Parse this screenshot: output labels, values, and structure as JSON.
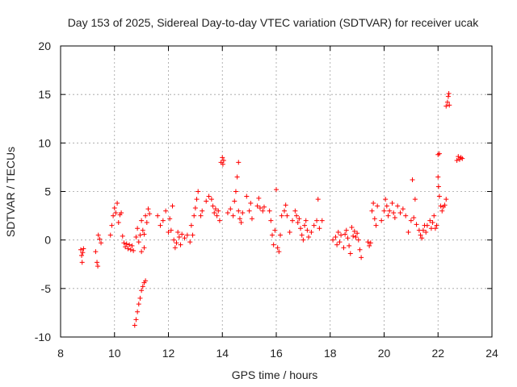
{
  "chart_data": {
    "type": "scatter",
    "title": "Day 153 of 2025, Sidereal Day-to-day VTEC variation (SDTVAR) for receiver ucak",
    "xlabel": "GPS time / hours",
    "ylabel": "SDTVAR / TECUs",
    "xlim": [
      8,
      24
    ],
    "ylim": [
      -10,
      20
    ],
    "xticks": [
      "8",
      "10",
      "12",
      "14",
      "16",
      "18",
      "20",
      "22",
      "24"
    ],
    "yticks": [
      "-10",
      "-5",
      "0",
      "5",
      "10",
      "15",
      "20"
    ],
    "grid": true,
    "marker": "plus",
    "color": "#ff0000",
    "series": [
      {
        "name": "SDTVAR",
        "points": [
          [
            8.75,
            -1.0
          ],
          [
            8.78,
            -1.6
          ],
          [
            8.8,
            -2.3
          ],
          [
            8.82,
            -1.3
          ],
          [
            8.85,
            -0.9
          ],
          [
            9.3,
            -1.2
          ],
          [
            9.35,
            -2.3
          ],
          [
            9.38,
            -2.7
          ],
          [
            9.4,
            0.5
          ],
          [
            9.45,
            0.1
          ],
          [
            9.5,
            -0.3
          ],
          [
            9.85,
            0.5
          ],
          [
            9.9,
            1.5
          ],
          [
            9.95,
            2.5
          ],
          [
            10.0,
            3.3
          ],
          [
            10.05,
            2.8
          ],
          [
            10.1,
            3.8
          ],
          [
            10.15,
            1.8
          ],
          [
            10.2,
            2.6
          ],
          [
            10.25,
            2.8
          ],
          [
            10.3,
            0.4
          ],
          [
            10.35,
            -0.3
          ],
          [
            10.4,
            -0.7
          ],
          [
            10.45,
            -0.4
          ],
          [
            10.5,
            -0.9
          ],
          [
            10.55,
            -0.5
          ],
          [
            10.6,
            -1.0
          ],
          [
            10.65,
            -0.6
          ],
          [
            10.7,
            -1.1
          ],
          [
            10.75,
            -8.8
          ],
          [
            10.8,
            -8.2
          ],
          [
            10.85,
            -7.4
          ],
          [
            10.9,
            -6.6
          ],
          [
            10.95,
            -6.0
          ],
          [
            11.0,
            -5.2
          ],
          [
            11.05,
            -4.8
          ],
          [
            11.1,
            -4.4
          ],
          [
            11.15,
            -4.2
          ],
          [
            10.8,
            0.3
          ],
          [
            10.85,
            1.2
          ],
          [
            10.9,
            -0.2
          ],
          [
            10.95,
            0.5
          ],
          [
            11.0,
            2.0
          ],
          [
            11.05,
            1.0
          ],
          [
            11.1,
            0.6
          ],
          [
            11.15,
            2.5
          ],
          [
            11.2,
            1.8
          ],
          [
            11.25,
            3.2
          ],
          [
            11.3,
            2.7
          ],
          [
            11.0,
            -1.2
          ],
          [
            11.1,
            -0.8
          ],
          [
            11.6,
            2.5
          ],
          [
            11.7,
            1.5
          ],
          [
            11.8,
            2.0
          ],
          [
            11.9,
            3.0
          ],
          [
            12.0,
            0.8
          ],
          [
            12.05,
            2.2
          ],
          [
            12.1,
            1.0
          ],
          [
            12.15,
            3.5
          ],
          [
            12.2,
            0.0
          ],
          [
            12.25,
            -0.8
          ],
          [
            12.3,
            -0.3
          ],
          [
            12.35,
            0.8
          ],
          [
            12.4,
            0.3
          ],
          [
            12.45,
            -0.5
          ],
          [
            12.5,
            0.6
          ],
          [
            12.6,
            0.2
          ],
          [
            12.7,
            0.5
          ],
          [
            12.8,
            -0.2
          ],
          [
            12.85,
            1.5
          ],
          [
            12.9,
            0.5
          ],
          [
            12.95,
            2.5
          ],
          [
            13.0,
            3.3
          ],
          [
            13.05,
            4.2
          ],
          [
            13.1,
            5.0
          ],
          [
            13.2,
            2.5
          ],
          [
            13.25,
            3.0
          ],
          [
            13.4,
            4.0
          ],
          [
            13.5,
            4.5
          ],
          [
            13.6,
            4.2
          ],
          [
            13.65,
            3.5
          ],
          [
            13.7,
            2.8
          ],
          [
            13.75,
            3.2
          ],
          [
            13.8,
            2.5
          ],
          [
            13.85,
            3.0
          ],
          [
            13.9,
            2.0
          ],
          [
            13.95,
            8.0
          ],
          [
            14.0,
            8.5
          ],
          [
            14.02,
            7.8
          ],
          [
            14.05,
            8.2
          ],
          [
            14.2,
            2.8
          ],
          [
            14.3,
            3.2
          ],
          [
            14.4,
            2.5
          ],
          [
            14.45,
            4.0
          ],
          [
            14.5,
            5.0
          ],
          [
            14.55,
            6.5
          ],
          [
            14.6,
            3.0
          ],
          [
            14.65,
            2.2
          ],
          [
            14.7,
            1.8
          ],
          [
            14.75,
            2.8
          ],
          [
            14.6,
            8.0
          ],
          [
            14.9,
            4.5
          ],
          [
            15.0,
            3.0
          ],
          [
            15.05,
            3.8
          ],
          [
            15.1,
            2.2
          ],
          [
            15.3,
            3.5
          ],
          [
            15.35,
            4.3
          ],
          [
            15.4,
            3.3
          ],
          [
            15.5,
            3.0
          ],
          [
            15.55,
            3.4
          ],
          [
            15.75,
            3.0
          ],
          [
            15.8,
            2.0
          ],
          [
            15.85,
            0.5
          ],
          [
            15.9,
            -0.5
          ],
          [
            15.95,
            1.0
          ],
          [
            16.0,
            5.2
          ],
          [
            16.05,
            -0.8
          ],
          [
            16.1,
            -1.2
          ],
          [
            16.15,
            0.5
          ],
          [
            16.2,
            2.5
          ],
          [
            16.3,
            3.0
          ],
          [
            16.35,
            3.6
          ],
          [
            16.4,
            2.5
          ],
          [
            16.5,
            0.8
          ],
          [
            16.6,
            2.0
          ],
          [
            16.7,
            3.0
          ],
          [
            16.75,
            2.5
          ],
          [
            16.8,
            1.8
          ],
          [
            16.85,
            2.2
          ],
          [
            16.9,
            1.2
          ],
          [
            16.95,
            0.5
          ],
          [
            17.0,
            0.0
          ],
          [
            17.05,
            1.5
          ],
          [
            17.1,
            2.0
          ],
          [
            17.15,
            1.0
          ],
          [
            17.2,
            0.3
          ],
          [
            17.3,
            0.8
          ],
          [
            17.4,
            1.5
          ],
          [
            17.5,
            2.0
          ],
          [
            17.55,
            4.2
          ],
          [
            17.6,
            1.2
          ],
          [
            17.7,
            2.0
          ],
          [
            18.1,
            0.0
          ],
          [
            18.2,
            0.3
          ],
          [
            18.25,
            -0.5
          ],
          [
            18.3,
            0.8
          ],
          [
            18.35,
            -0.2
          ],
          [
            18.4,
            0.5
          ],
          [
            18.5,
            -0.8
          ],
          [
            18.55,
            0.6
          ],
          [
            18.6,
            1.0
          ],
          [
            18.65,
            0.2
          ],
          [
            18.7,
            -0.6
          ],
          [
            18.75,
            -1.4
          ],
          [
            18.8,
            1.3
          ],
          [
            18.85,
            0.4
          ],
          [
            18.9,
            0.9
          ],
          [
            18.95,
            0.3
          ],
          [
            19.0,
            0.7
          ],
          [
            19.05,
            0.0
          ],
          [
            19.1,
            -1.0
          ],
          [
            19.15,
            -1.8
          ],
          [
            19.4,
            -0.2
          ],
          [
            19.45,
            -0.6
          ],
          [
            19.5,
            -0.3
          ],
          [
            19.55,
            3.0
          ],
          [
            19.6,
            3.8
          ],
          [
            19.65,
            2.2
          ],
          [
            19.7,
            1.5
          ],
          [
            19.75,
            3.5
          ],
          [
            19.9,
            2.0
          ],
          [
            20.0,
            3.0
          ],
          [
            20.05,
            4.2
          ],
          [
            20.1,
            3.5
          ],
          [
            20.15,
            2.5
          ],
          [
            20.2,
            3.0
          ],
          [
            20.3,
            3.8
          ],
          [
            20.35,
            2.8
          ],
          [
            20.4,
            2.3
          ],
          [
            20.5,
            3.5
          ],
          [
            20.6,
            2.8
          ],
          [
            20.7,
            3.2
          ],
          [
            20.8,
            2.5
          ],
          [
            20.9,
            0.8
          ],
          [
            21.0,
            2.0
          ],
          [
            21.05,
            6.2
          ],
          [
            21.1,
            2.3
          ],
          [
            21.15,
            4.2
          ],
          [
            21.2,
            1.6
          ],
          [
            21.3,
            1.0
          ],
          [
            21.35,
            0.5
          ],
          [
            21.4,
            0.2
          ],
          [
            21.45,
            1.0
          ],
          [
            21.5,
            1.5
          ],
          [
            21.55,
            0.8
          ],
          [
            21.6,
            1.5
          ],
          [
            21.7,
            2.0
          ],
          [
            21.75,
            1.2
          ],
          [
            21.8,
            1.8
          ],
          [
            21.85,
            2.5
          ],
          [
            21.9,
            1.2
          ],
          [
            21.95,
            1.5
          ],
          [
            22.0,
            8.8
          ],
          [
            22.05,
            8.9
          ],
          [
            22.0,
            6.5
          ],
          [
            22.02,
            5.5
          ],
          [
            22.05,
            4.5
          ],
          [
            22.1,
            3.5
          ],
          [
            22.15,
            3.0
          ],
          [
            22.2,
            3.4
          ],
          [
            22.25,
            3.6
          ],
          [
            22.3,
            4.2
          ],
          [
            22.3,
            13.8
          ],
          [
            22.35,
            14.2
          ],
          [
            22.38,
            14.8
          ],
          [
            22.4,
            15.1
          ],
          [
            22.42,
            13.9
          ],
          [
            22.7,
            8.2
          ],
          [
            22.75,
            8.6
          ],
          [
            22.8,
            8.3
          ],
          [
            22.85,
            8.5
          ],
          [
            22.9,
            8.4
          ]
        ]
      }
    ]
  }
}
